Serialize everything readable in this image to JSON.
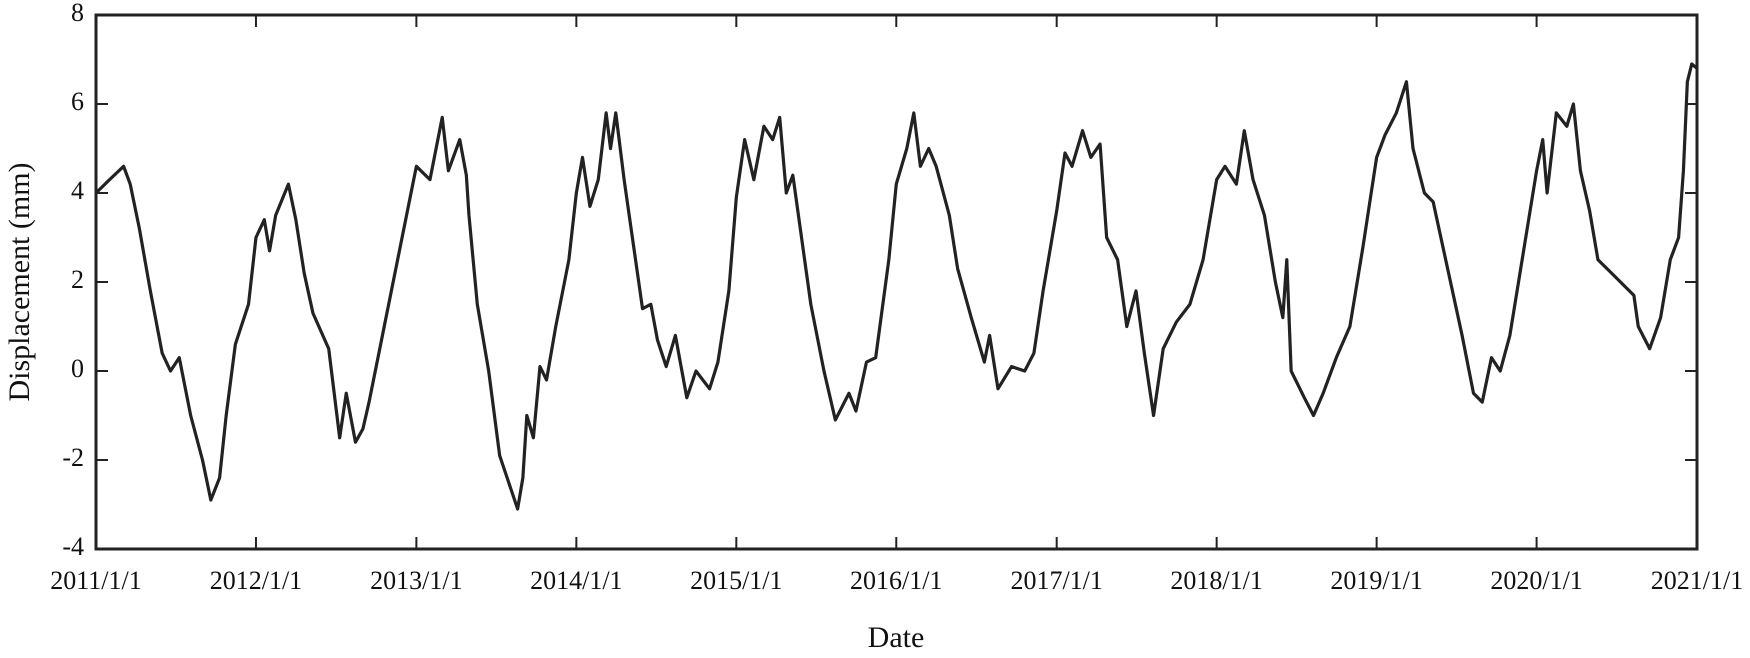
{
  "chart_data": {
    "type": "line",
    "xlabel": "Date",
    "ylabel": "Displacement (mm)",
    "color": "#222222",
    "xlim": [
      "2011/1/1",
      "2021/1/1"
    ],
    "xticks": [
      "2011/1/1",
      "2012/1/1",
      "2013/1/1",
      "2014/1/1",
      "2015/1/1",
      "2016/1/1",
      "2017/1/1",
      "2018/1/1",
      "2019/1/1",
      "2020/1/1",
      "2021/1/1"
    ],
    "ylim": [
      -4,
      8
    ],
    "yticks": [
      -4,
      -2,
      0,
      2,
      4,
      6,
      8
    ],
    "x": [
      "2011/1/1",
      "2011/2/1",
      "2011/3/5",
      "2011/3/20",
      "2011/4/10",
      "2011/5/5",
      "2011/6/1",
      "2011/6/20",
      "2011/7/10",
      "2011/8/5",
      "2011/9/1",
      "2011/9/20",
      "2011/10/10",
      "2011/10/25",
      "2011/11/15",
      "2011/12/15",
      "2012/1/1",
      "2012/1/20",
      "2012/2/1",
      "2012/2/15",
      "2012/3/15",
      "2012/4/1",
      "2012/4/20",
      "2012/5/10",
      "2012/6/15",
      "2012/7/10",
      "2012/7/25",
      "2012/8/15",
      "2012/9/1",
      "2012/9/15",
      "2013/1/1",
      "2013/2/1",
      "2013/3/1",
      "2013/3/15",
      "2013/4/10",
      "2013/4/25",
      "2013/5/1",
      "2013/5/20",
      "2013/6/15",
      "2013/7/10",
      "2013/8/20",
      "2013/9/1",
      "2013/9/10",
      "2013/9/25",
      "2013/10/10",
      "2013/10/25",
      "2013/11/15",
      "2013/12/15",
      "2014/1/1",
      "2014/1/15",
      "2014/2/1",
      "2014/2/20",
      "2014/3/10",
      "2014/3/20",
      "2014/4/1",
      "2014/4/20",
      "2014/6/1",
      "2014/6/20",
      "2014/7/5",
      "2014/7/25",
      "2014/8/15",
      "2014/9/10",
      "2014/10/1",
      "2014/11/1",
      "2014/11/20",
      "2014/12/15",
      "2015/1/1",
      "2015/1/20",
      "2015/2/10",
      "2015/3/5",
      "2015/3/25",
      "2015/4/10",
      "2015/4/25",
      "2015/5/10",
      "2015/6/20",
      "2015/7/20",
      "2015/8/15",
      "2015/9/15",
      "2015/10/1",
      "2015/10/25",
      "2015/11/15",
      "2015/12/15",
      "2016/1/1",
      "2016/1/25",
      "2016/2/10",
      "2016/2/25",
      "2016/3/15",
      "2016/4/1",
      "2016/5/1",
      "2016/5/20",
      "2016/6/20",
      "2016/7/20",
      "2016/8/1",
      "2016/8/20",
      "2016/9/20",
      "2016/10/20",
      "2016/11/10",
      "2016/12/1",
      "2017/1/1",
      "2017/1/20",
      "2017/2/5",
      "2017/3/1",
      "2017/3/20",
      "2017/4/10",
      "2017/4/25",
      "2017/5/20",
      "2017/6/10",
      "2017/7/1",
      "2017/7/20",
      "2017/8/10",
      "2017/9/1",
      "2017/10/1",
      "2017/11/1",
      "2017/12/1",
      "2018/1/1",
      "2018/1/20",
      "2018/2/15",
      "2018/3/5",
      "2018/3/25",
      "2018/4/20",
      "2018/5/15",
      "2018/6/1",
      "2018/6/10",
      "2018/6/20",
      "2018/7/20",
      "2018/8/10",
      "2018/9/1",
      "2018/10/1",
      "2018/11/1",
      "2018/12/1",
      "2019/1/1",
      "2019/1/20",
      "2019/2/15",
      "2019/3/10",
      "2019/3/25",
      "2019/4/20",
      "2019/5/10",
      "2019/7/15",
      "2019/8/10",
      "2019/8/30",
      "2019/9/20",
      "2019/10/10",
      "2019/11/1",
      "2020/1/1",
      "2020/1/15",
      "2020/1/25",
      "2020/2/15",
      "2020/3/10",
      "2020/3/25",
      "2020/4/10",
      "2020/5/1",
      "2020/5/20",
      "2020/6/20",
      "2020/8/10",
      "2020/8/20",
      "2020/9/15",
      "2020/10/10",
      "2020/11/1",
      "2020/11/20",
      "2020/12/1",
      "2020/12/10",
      "2020/12/20",
      "2021/1/1"
    ],
    "values": [
      4.0,
      4.3,
      4.6,
      4.2,
      3.2,
      1.8,
      0.4,
      0.0,
      0.3,
      -1.0,
      -2.0,
      -2.9,
      -2.4,
      -1.0,
      0.6,
      1.5,
      3.0,
      3.4,
      2.7,
      3.5,
      4.2,
      3.4,
      2.2,
      1.3,
      0.5,
      -1.5,
      -0.5,
      -1.6,
      -1.3,
      -0.7,
      4.6,
      4.3,
      5.7,
      4.5,
      5.2,
      4.4,
      3.5,
      1.5,
      0.0,
      -1.9,
      -3.1,
      -2.4,
      -1.0,
      -1.5,
      0.1,
      -0.2,
      1.0,
      2.5,
      4.0,
      4.8,
      3.7,
      4.3,
      5.8,
      5.0,
      5.8,
      4.3,
      1.4,
      1.5,
      0.7,
      0.1,
      0.8,
      -0.6,
      0.0,
      -0.4,
      0.2,
      1.8,
      3.9,
      5.2,
      4.3,
      5.5,
      5.2,
      5.7,
      4.0,
      4.4,
      1.5,
      0.0,
      -1.1,
      -0.5,
      -0.9,
      0.2,
      0.3,
      2.5,
      4.2,
      5.0,
      5.8,
      4.6,
      5.0,
      4.6,
      3.5,
      2.3,
      1.2,
      0.2,
      0.8,
      -0.4,
      0.1,
      0.0,
      0.4,
      1.8,
      3.6,
      4.9,
      4.6,
      5.4,
      4.8,
      5.1,
      3.0,
      2.5,
      1.0,
      1.8,
      0.4,
      -1.0,
      0.5,
      1.1,
      1.5,
      2.5,
      4.3,
      4.6,
      4.2,
      5.4,
      4.3,
      3.5,
      2.0,
      1.2,
      2.5,
      0.0,
      -0.6,
      -1.0,
      -0.5,
      0.3,
      1.0,
      2.8,
      4.8,
      5.3,
      5.8,
      6.5,
      5.0,
      4.0,
      3.8,
      0.8,
      -0.5,
      -0.7,
      0.3,
      0.0,
      0.8,
      4.5,
      5.2,
      4.0,
      5.8,
      5.5,
      6.0,
      4.5,
      3.6,
      2.5,
      2.2,
      1.7,
      1.0,
      0.5,
      1.2,
      2.5,
      3.0,
      4.5,
      6.5,
      6.9,
      6.8
    ]
  }
}
